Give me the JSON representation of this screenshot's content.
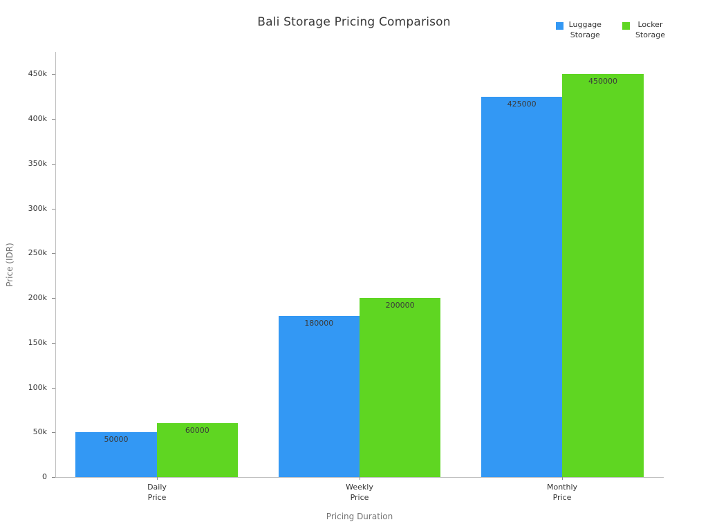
{
  "chart_data": {
    "type": "bar",
    "title": "Bali Storage Pricing Comparison",
    "xlabel": "Pricing Duration",
    "ylabel": "Price (IDR)",
    "categories": [
      "Daily Price",
      "Weekly Price",
      "Monthly Price"
    ],
    "series": [
      {
        "name": "Luggage Storage",
        "color": "#3398f4",
        "values": [
          50000,
          180000,
          425000
        ]
      },
      {
        "name": "Locker Storage",
        "color": "#5fd622",
        "values": [
          60000,
          200000,
          450000
        ]
      }
    ],
    "bar_value_labels": [
      "50000",
      "60000",
      "180000",
      "200000",
      "425000",
      "450000"
    ],
    "ylim": [
      0,
      475000
    ],
    "yticks": [
      0,
      50000,
      100000,
      150000,
      200000,
      250000,
      300000,
      350000,
      400000,
      450000
    ],
    "ytick_labels": [
      "0",
      "50k",
      "100k",
      "150k",
      "200k",
      "250k",
      "300k",
      "350k",
      "400k",
      "450k"
    ],
    "grid": false,
    "legend_position": "top-right"
  },
  "legend": {
    "items": [
      {
        "label": "Luggage Storage",
        "color": "#3398f4"
      },
      {
        "label": "Locker Storage",
        "color": "#5fd622"
      }
    ]
  }
}
